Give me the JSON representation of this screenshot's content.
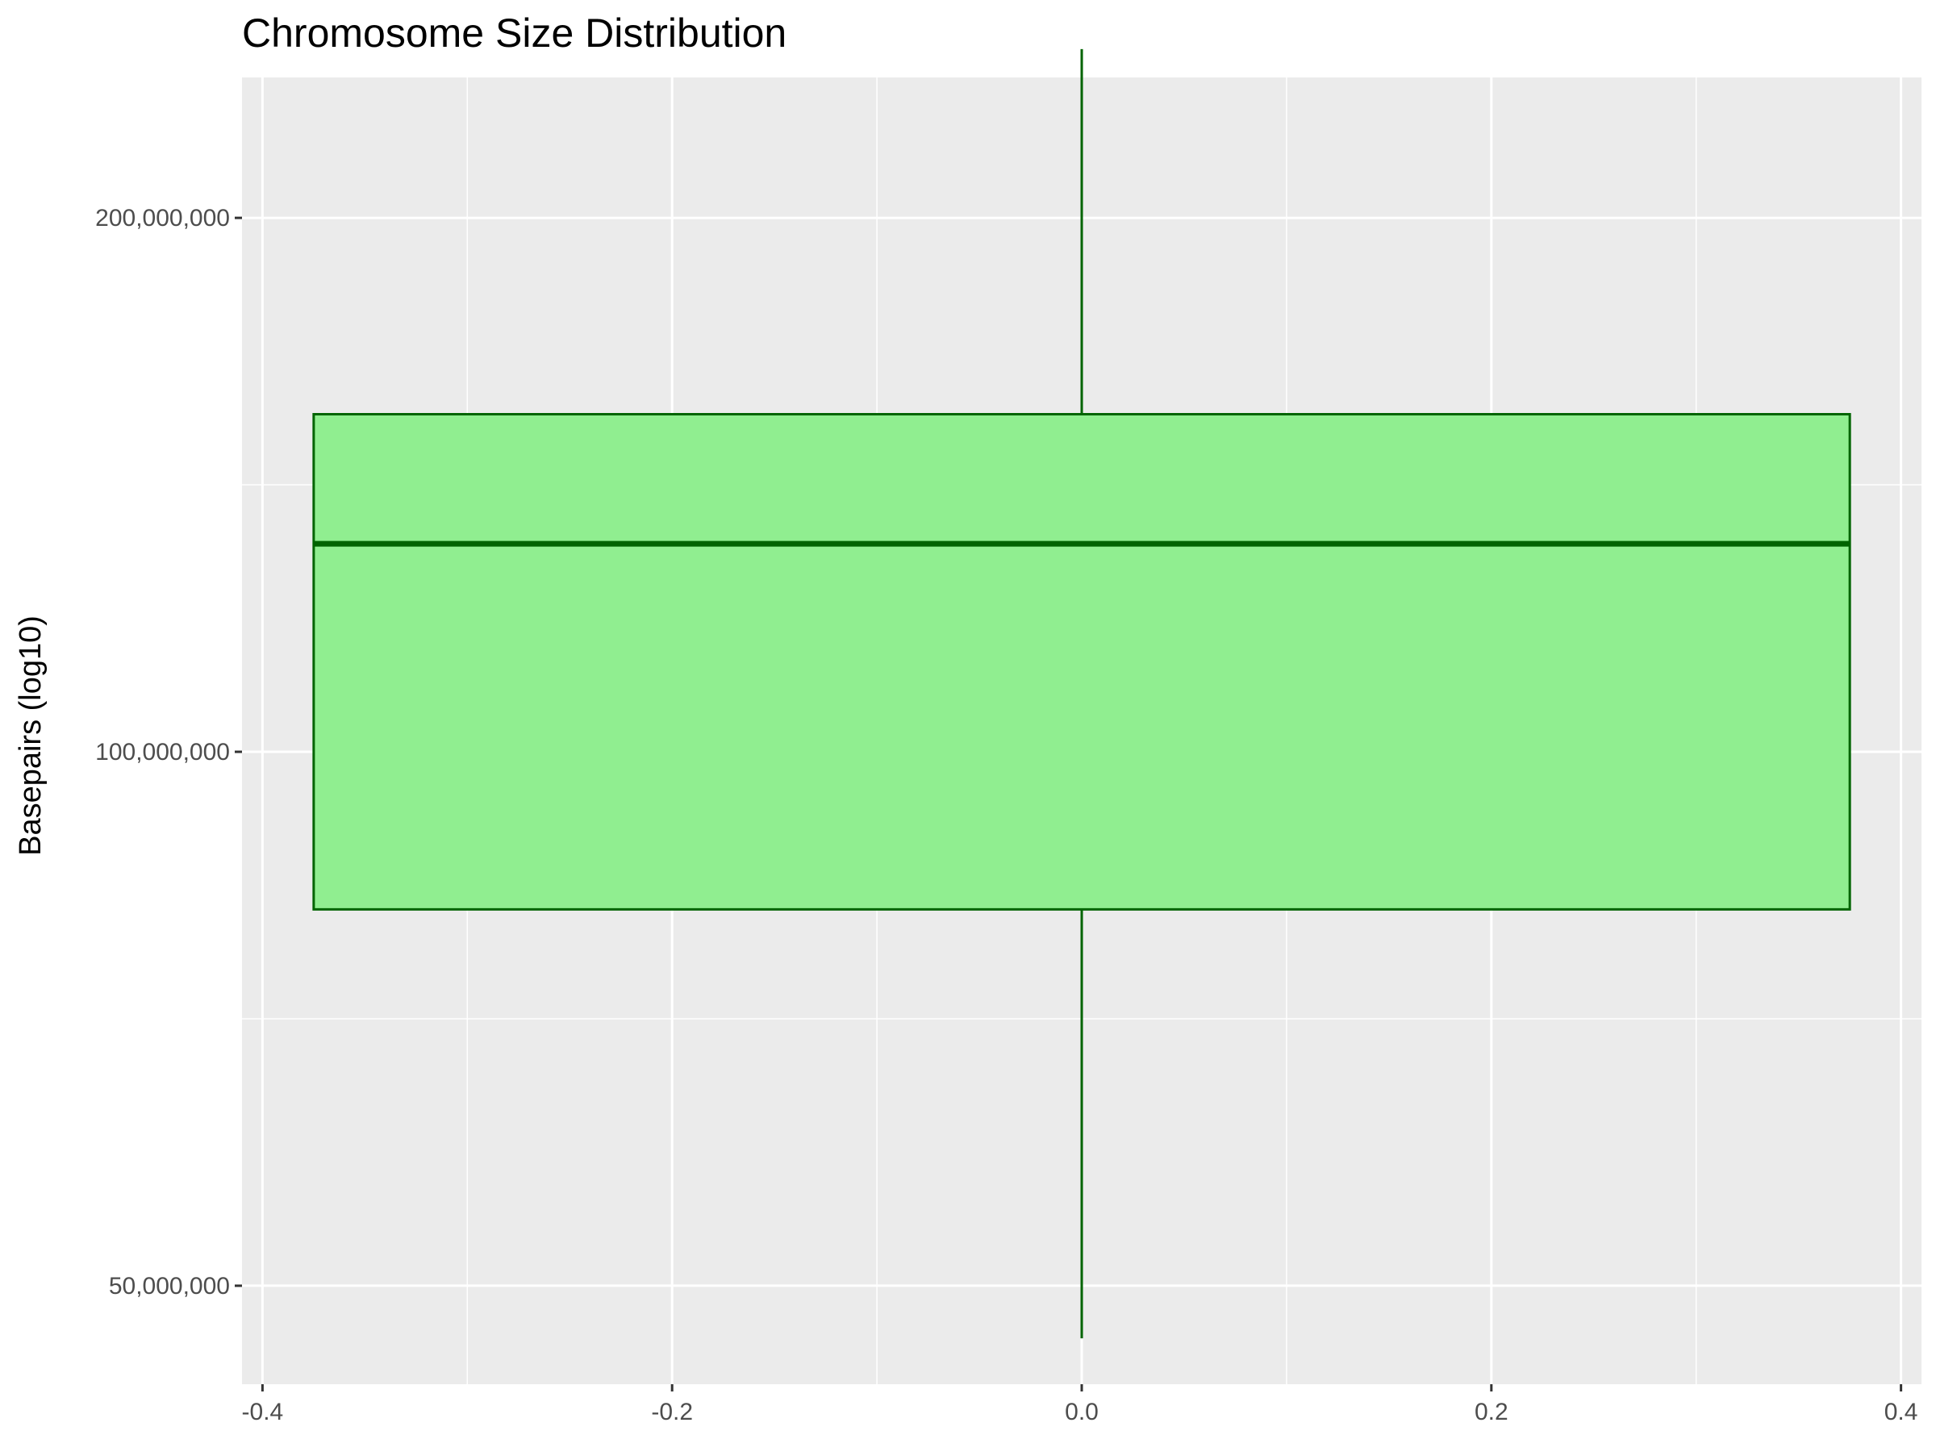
{
  "chart_data": {
    "type": "boxplot",
    "title": "Chromosome Size Distribution",
    "xlabel": "",
    "ylabel": "Basepairs (log10)",
    "y_scale": "log10",
    "ylim": [
      44000000,
      240000000
    ],
    "xlim": [
      -0.41,
      0.41
    ],
    "x_ticks": [
      {
        "value": -0.4,
        "label": "-0.4"
      },
      {
        "value": -0.2,
        "label": "-0.2"
      },
      {
        "value": 0.0,
        "label": "0.0"
      },
      {
        "value": 0.2,
        "label": "0.2"
      },
      {
        "value": 0.4,
        "label": "0.4"
      }
    ],
    "y_ticks": [
      {
        "value": 50000000,
        "label": "50,000,000"
      },
      {
        "value": 100000000,
        "label": "100,000,000"
      },
      {
        "value": 200000000,
        "label": "200,000,000"
      }
    ],
    "x_minor_ticks": [
      -0.3,
      -0.1,
      0.1,
      0.3
    ],
    "y_minor_ticks": [
      70710678,
      141421356
    ],
    "grid": true,
    "legend": "none",
    "box": {
      "x": 0.0,
      "width": 0.75,
      "whisker_low": 46700000,
      "q1": 81500000,
      "median": 131000000,
      "q3": 155000000,
      "whisker_high": 249000000
    },
    "colors": {
      "panel_background": "#EBEBEB",
      "grid": "#FFFFFF",
      "box_fill": "#90EE90",
      "box_outline": "#006400"
    }
  }
}
